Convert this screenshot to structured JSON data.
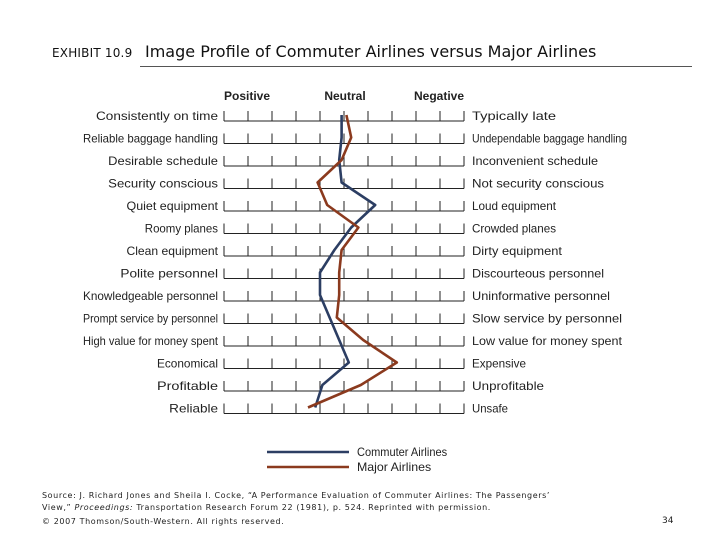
{
  "header": {
    "exhibit": "EXHIBIT 10.9",
    "title": "Image Profile of Commuter Airlines versus Major Airlines"
  },
  "chart_data": {
    "type": "line",
    "title": "",
    "scale_labels": [
      "Positive",
      "Neutral",
      "Negative"
    ],
    "scale_points": 11,
    "x_range": [
      1,
      11
    ],
    "left_labels": [
      "Consistently on time",
      "Reliable baggage handling",
      "Desirable schedule",
      "Security conscious",
      "Quiet equipment",
      "Roomy planes",
      "Clean equipment",
      "Polite personnel",
      "Knowledgeable personnel",
      "Prompt service by personnel",
      "High value for money spent",
      "Economical",
      "Profitable",
      "Reliable"
    ],
    "right_labels": [
      "Typically late",
      "Undependable baggage handling",
      "Inconvenient schedule",
      "Not security conscious",
      "Loud equipment",
      "Crowded planes",
      "Dirty equipment",
      "Discourteous personnel",
      "Uninformative personnel",
      "Slow service by personnel",
      "Low value for money spent",
      "Expensive",
      "Unprofitable",
      "Unsafe"
    ],
    "series": [
      {
        "name": "Commuter Airlines",
        "color": "#2c3e63",
        "values": [
          5.9,
          5.9,
          5.8,
          5.9,
          7.3,
          6.3,
          5.6,
          5.0,
          5.0,
          5.4,
          5.8,
          6.2,
          5.1,
          4.8
        ]
      },
      {
        "name": "Major Airlines",
        "color": "#8b3a1e",
        "values": [
          6.1,
          6.3,
          5.9,
          4.9,
          5.3,
          6.6,
          5.9,
          5.8,
          5.8,
          5.7,
          6.8,
          8.2,
          6.7,
          4.5
        ]
      }
    ],
    "legend_position": "bottom-right"
  },
  "footer": {
    "source": "Source: J. Richard Jones and Sheila I. Cocke, “A Performance Evaluation of Commuter Airlines: The Passengers’",
    "source_line2_a": "View,”",
    "source_line2_pub": "Proceedings:",
    "source_line2_b": "Transportation Research Forum 22 (1981), p. 524. Reprinted with permission.",
    "copyright": "© 2007 Thomson/South-Western. All rights reserved.",
    "page": "34"
  }
}
